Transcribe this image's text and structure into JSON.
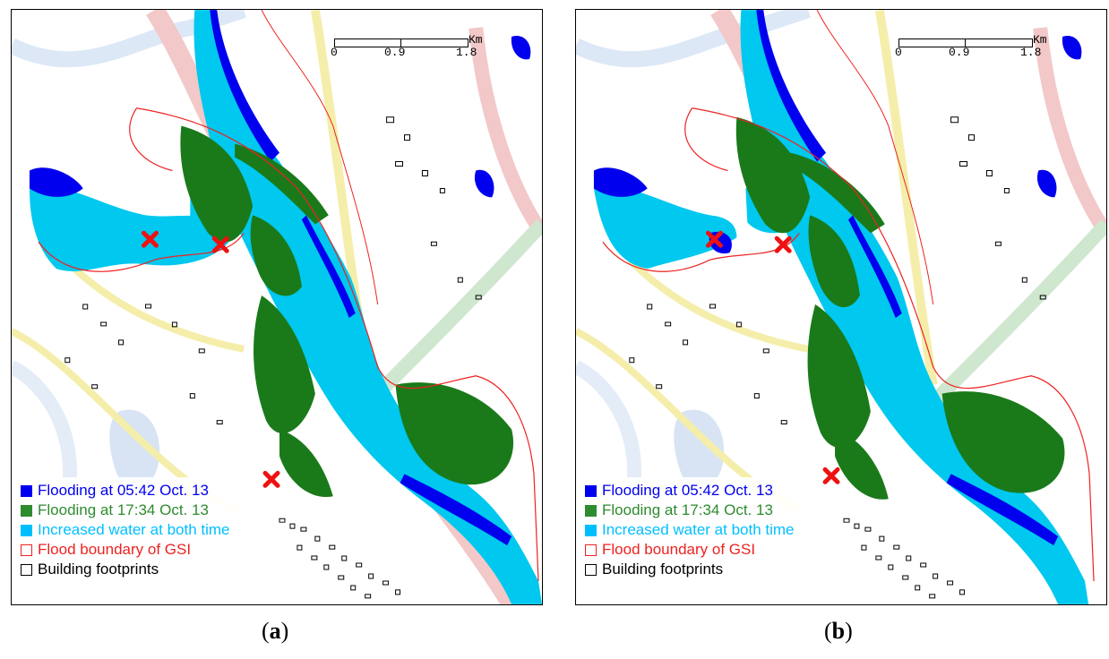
{
  "scalebar": {
    "unit": "Km",
    "ticks": [
      "0",
      "0.9",
      "1.8"
    ]
  },
  "legend": [
    {
      "label": "Flooding at 05:42 Oct. 13",
      "color": "#0000ee",
      "style": "fill"
    },
    {
      "label": "Flooding at 17:34 Oct. 13",
      "color": "#2e8b2e",
      "style": "fill"
    },
    {
      "label": "Increased water at both time",
      "color": "#00bfff",
      "style": "fill"
    },
    {
      "label": "Flood boundary of GSI",
      "color": "#ee2222",
      "style": "outline"
    },
    {
      "label": "Building footprints",
      "color": "#000000",
      "style": "outline"
    }
  ],
  "panels": [
    {
      "letter": "a"
    },
    {
      "letter": "b"
    }
  ],
  "colors": {
    "flood_early": "#0000ee",
    "flood_late": "#1a7a1a",
    "increased_water": "#00c8ee",
    "gsi_boundary": "#ee2222",
    "marker": "#ee1111",
    "road_pink": "#f2c8c8",
    "road_yellow": "#f4eeaa",
    "river_light": "#dce8f6"
  },
  "markers_icon": "cross-marker-icon"
}
